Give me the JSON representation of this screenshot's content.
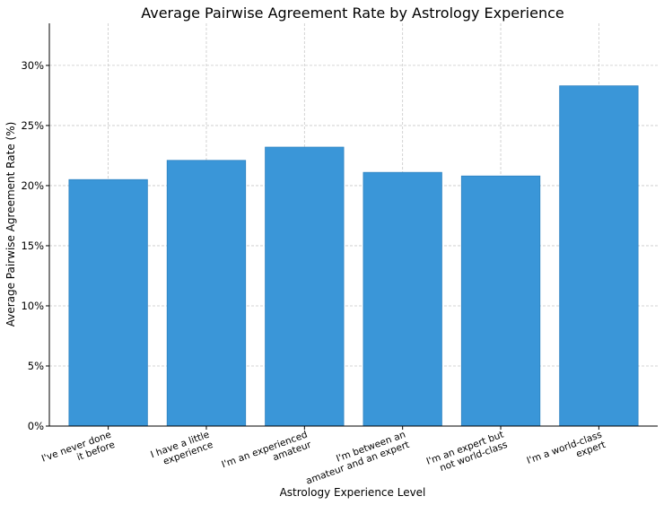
{
  "chart_data": {
    "type": "bar",
    "title": "Average Pairwise Agreement Rate by Astrology Experience",
    "xlabel": "Astrology Experience Level",
    "ylabel": "Average Pairwise Agreement Rate (%)",
    "categories": [
      [
        "I've never done",
        "it before"
      ],
      [
        "I have a little",
        "experience"
      ],
      [
        "I'm an experienced",
        "amateur"
      ],
      [
        "I'm between an",
        "amateur and an expert"
      ],
      [
        "I'm an expert but",
        "not world-class"
      ],
      [
        "I'm a world-class",
        "expert"
      ]
    ],
    "values": [
      20.5,
      22.1,
      23.2,
      21.1,
      20.8,
      28.3
    ],
    "ylim": [
      0,
      33.5
    ],
    "yticks": [
      0,
      5,
      10,
      15,
      20,
      25,
      30
    ],
    "ytick_labels": [
      "0%",
      "5%",
      "10%",
      "15%",
      "20%",
      "25%",
      "30%"
    ],
    "grid": true,
    "colors": {
      "bar": "#3a96d8",
      "bar_edge": "#2d82c0",
      "grid": "#c8c8c8"
    }
  }
}
